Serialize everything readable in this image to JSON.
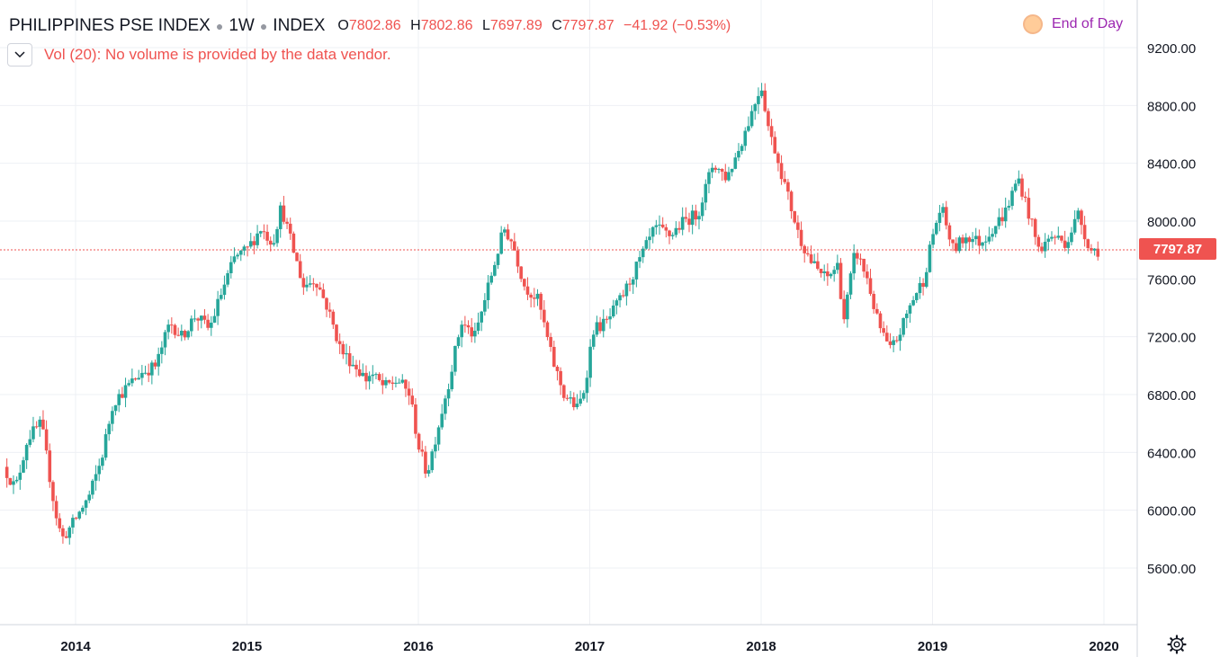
{
  "header": {
    "symbol": "PHILIPPINES PSE INDEX",
    "interval": "1W",
    "exchange": "INDEX",
    "open_key": "O",
    "open": "7802.86",
    "high_key": "H",
    "high": "7802.86",
    "low_key": "L",
    "low": "7697.89",
    "close_key": "C",
    "close": "7797.87",
    "change": "−41.92 (−0.53%)"
  },
  "volume_note": "Vol (20): No volume is provided by the data vendor.",
  "end_of_day_label": "End of Day",
  "last_price_label": "7797.87",
  "colors": {
    "up": "#26a69a",
    "down": "#ef5350",
    "grid": "#eef0f4",
    "axis_text": "#131722"
  },
  "icons": {
    "collapse": "chevron-down-icon",
    "settings": "gear-icon",
    "eod": "circle-dot-icon"
  },
  "chart_data": {
    "type": "candlestick",
    "title": "PHILIPPINES PSE INDEX",
    "interval": "1W",
    "ylim": [
      5250,
      9450
    ],
    "x_range": [
      "2013-07",
      "2020-03"
    ],
    "y_ticks": [
      "9200.00",
      "8800.00",
      "8400.00",
      "8000.00",
      "7600.00",
      "7200.00",
      "6800.00",
      "6400.00",
      "6000.00",
      "5600.00"
    ],
    "y_tick_values": [
      9200,
      8800,
      8400,
      8000,
      7600,
      7200,
      6800,
      6400,
      6000,
      5600
    ],
    "x_ticks": [
      "2014",
      "2015",
      "2016",
      "2017",
      "2018",
      "2019",
      "2020"
    ],
    "x_tick_positions": [
      2014.0,
      2015.0,
      2016.0,
      2017.0,
      2018.0,
      2019.0,
      2020.0
    ],
    "last_price": 7797.87,
    "grid": true,
    "close_series_t": [
      2013.58,
      2013.65,
      2013.72,
      2013.8,
      2013.88,
      2013.92,
      2013.98,
      2014.08,
      2014.15,
      2014.22,
      2014.3,
      2014.38,
      2014.47,
      2014.55,
      2014.62,
      2014.7,
      2014.78,
      2014.85,
      2014.93,
      2015.0,
      2015.08,
      2015.15,
      2015.2,
      2015.27,
      2015.33,
      2015.4,
      2015.47,
      2015.55,
      2015.63,
      2015.7,
      2015.72,
      2015.8,
      2015.88,
      2015.95,
      2016.0,
      2016.05,
      2016.1,
      2016.18,
      2016.25,
      2016.33,
      2016.42,
      2016.5,
      2016.55,
      2016.62,
      2016.7,
      2016.78,
      2016.85,
      2016.93,
      2016.97,
      2017.02,
      2017.1,
      2017.2,
      2017.3,
      2017.38,
      2017.47,
      2017.55,
      2017.63,
      2017.72,
      2017.8,
      2017.87,
      2017.93,
      2018.0,
      2018.05,
      2018.08,
      2018.15,
      2018.22,
      2018.3,
      2018.38,
      2018.45,
      2018.48,
      2018.55,
      2018.62,
      2018.68,
      2018.75,
      2018.8,
      2018.88,
      2018.95,
      2019.0,
      2019.05,
      2019.12,
      2019.2,
      2019.28,
      2019.35,
      2019.42,
      2019.5,
      2019.55,
      2019.62,
      2019.7,
      2019.78,
      2019.85,
      2019.92,
      2019.98
    ],
    "close_series_v": [
      6300,
      6150,
      6500,
      6600,
      6000,
      5800,
      5900,
      6100,
      6350,
      6750,
      6850,
      6950,
      7000,
      7300,
      7200,
      7350,
      7250,
      7500,
      7750,
      7800,
      7950,
      7850,
      8100,
      7800,
      7550,
      7600,
      7400,
      7100,
      7000,
      6900,
      6950,
      6850,
      6900,
      6800,
      6450,
      6250,
      6500,
      6900,
      7300,
      7200,
      7600,
      7950,
      7850,
      7550,
      7450,
      7050,
      6800,
      6700,
      6850,
      7250,
      7300,
      7500,
      7750,
      7950,
      7900,
      8000,
      8050,
      8400,
      8300,
      8500,
      8700,
      8950,
      8600,
      8500,
      8200,
      7900,
      7700,
      7600,
      7700,
      7300,
      7800,
      7600,
      7300,
      7100,
      7200,
      7450,
      7600,
      7900,
      8100,
      7800,
      7900,
      7850,
      7950,
      8050,
      8300,
      8100,
      7800,
      7900,
      7850,
      8050,
      7800,
      7797.87
    ],
    "close_series_note": "approximate weekly closes (decimal year vs. index value)"
  }
}
